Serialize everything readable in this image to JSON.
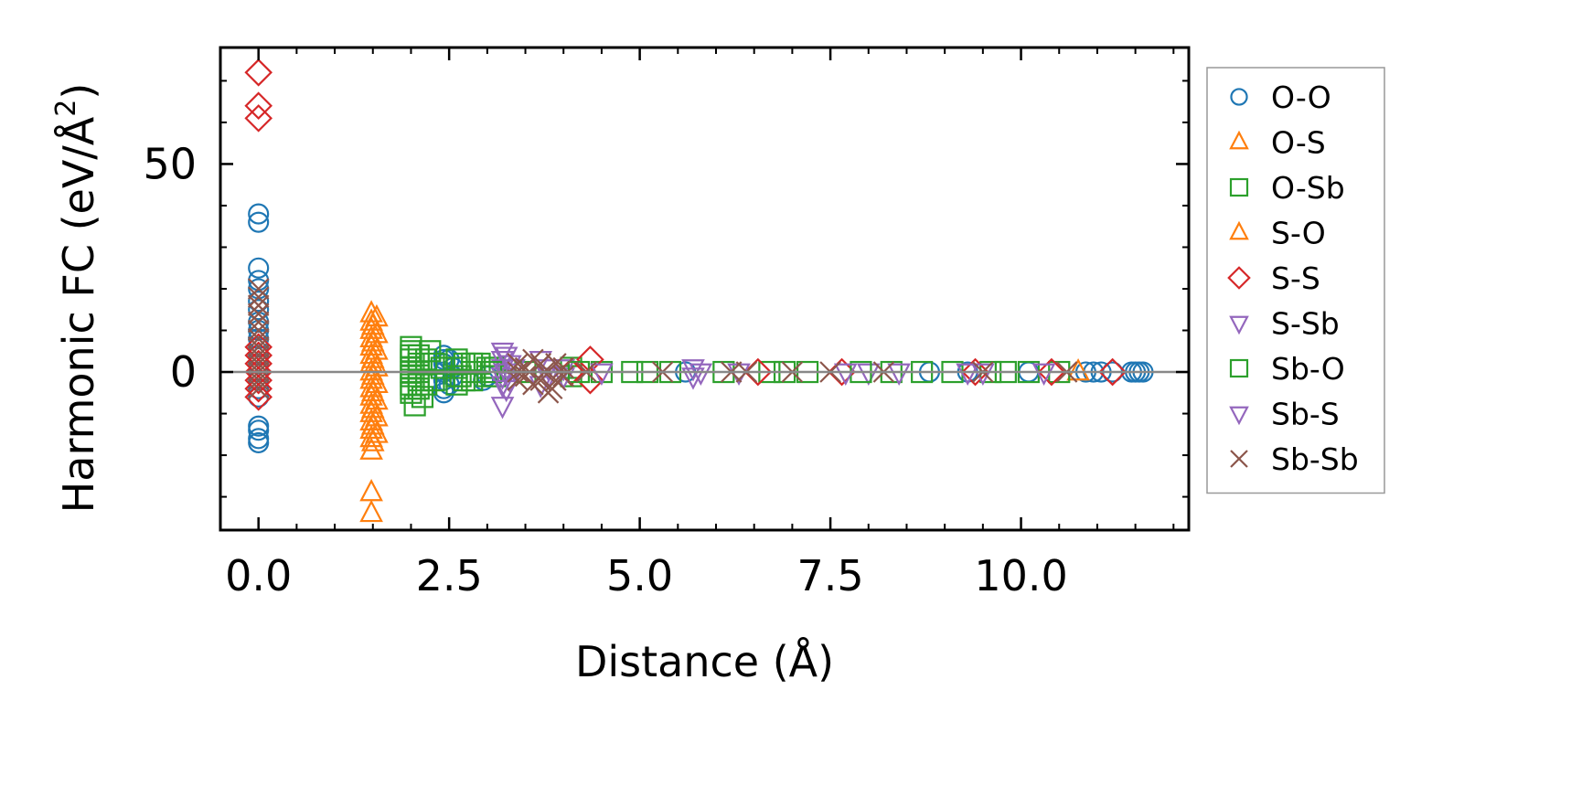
{
  "chart_data": {
    "type": "scatter",
    "xlabel": "Distance (Å)",
    "ylabel_main": "Harmonic FC (eV/Å",
    "ylabel_sup": "2",
    "ylabel_close": ")",
    "xlim": [
      -0.5,
      12.2
    ],
    "ylim": [
      -38,
      78
    ],
    "xticks": [
      0.0,
      2.5,
      5.0,
      7.5,
      10.0
    ],
    "xtick_labels": [
      "0.0",
      "2.5",
      "5.0",
      "7.5",
      "10.0"
    ],
    "yticks": [
      0,
      50
    ],
    "ytick_labels": [
      "0",
      "50"
    ],
    "zero_line": true,
    "grid": false,
    "legend_position": "outside-right",
    "series": [
      {
        "name": "O-O",
        "marker": "circle",
        "color": "#1f77b4",
        "points": [
          [
            0,
            38
          ],
          [
            0,
            36
          ],
          [
            0,
            25
          ],
          [
            0,
            22
          ],
          [
            0,
            20
          ],
          [
            0,
            17
          ],
          [
            0,
            15
          ],
          [
            0,
            12
          ],
          [
            0,
            10
          ],
          [
            0,
            8
          ],
          [
            0,
            6
          ],
          [
            0,
            4
          ],
          [
            0,
            2
          ],
          [
            0,
            0
          ],
          [
            0,
            -2
          ],
          [
            0,
            -4
          ],
          [
            0,
            -6
          ],
          [
            0,
            -13
          ],
          [
            0,
            -14
          ],
          [
            0,
            -16
          ],
          [
            0,
            -17
          ],
          [
            2.43,
            4
          ],
          [
            2.43,
            3
          ],
          [
            2.43,
            2
          ],
          [
            2.43,
            0
          ],
          [
            2.43,
            -2
          ],
          [
            2.43,
            -4
          ],
          [
            2.43,
            -5
          ],
          [
            2.5,
            3
          ],
          [
            2.5,
            -3
          ],
          [
            2.55,
            1
          ],
          [
            2.55,
            -1
          ],
          [
            2.95,
            -2
          ],
          [
            3.0,
            -1
          ],
          [
            5.6,
            0
          ],
          [
            8.8,
            0
          ],
          [
            9.3,
            0
          ],
          [
            10.1,
            0
          ],
          [
            10.85,
            0
          ],
          [
            10.95,
            0
          ],
          [
            11.05,
            0
          ],
          [
            11.2,
            0
          ],
          [
            11.45,
            0
          ],
          [
            11.5,
            0
          ],
          [
            11.55,
            0
          ],
          [
            11.6,
            0
          ]
        ]
      },
      {
        "name": "O-S",
        "marker": "triangle-up",
        "color": "#ff7f0e",
        "points": [
          [
            1.48,
            14
          ],
          [
            1.48,
            12
          ],
          [
            1.48,
            10
          ],
          [
            1.48,
            8
          ],
          [
            1.48,
            6
          ],
          [
            1.48,
            4
          ],
          [
            1.48,
            2
          ],
          [
            1.48,
            0
          ],
          [
            1.48,
            -2
          ],
          [
            1.48,
            -4
          ],
          [
            1.48,
            -6
          ],
          [
            1.48,
            -8
          ],
          [
            1.48,
            -10
          ],
          [
            1.48,
            -12
          ],
          [
            1.48,
            -14
          ],
          [
            1.48,
            -16
          ],
          [
            1.48,
            -19
          ],
          [
            1.48,
            -29
          ],
          [
            1.48,
            -34
          ],
          [
            1.55,
            13
          ],
          [
            1.55,
            9
          ],
          [
            1.55,
            5
          ],
          [
            1.55,
            1
          ],
          [
            1.55,
            -3
          ],
          [
            1.55,
            -7
          ],
          [
            1.55,
            -11
          ],
          [
            1.55,
            -15
          ],
          [
            10.75,
            0
          ]
        ]
      },
      {
        "name": "O-Sb",
        "marker": "square",
        "color": "#2ca02c",
        "points": [
          [
            2.0,
            6
          ],
          [
            2.0,
            5
          ],
          [
            2.0,
            3
          ],
          [
            2.0,
            1
          ],
          [
            2.0,
            -1
          ],
          [
            2.0,
            -3
          ],
          [
            2.0,
            -5
          ],
          [
            2.05,
            -8
          ],
          [
            2.1,
            4
          ],
          [
            2.1,
            2
          ],
          [
            2.1,
            0
          ],
          [
            2.1,
            -2
          ],
          [
            2.1,
            -4
          ],
          [
            2.2,
            3
          ],
          [
            2.2,
            -3
          ],
          [
            2.3,
            2
          ],
          [
            2.3,
            -2
          ],
          [
            2.6,
            3
          ],
          [
            2.6,
            1
          ],
          [
            2.6,
            -1
          ],
          [
            2.6,
            -3
          ],
          [
            2.7,
            2
          ],
          [
            2.7,
            -2
          ],
          [
            2.8,
            2
          ],
          [
            2.8,
            0
          ],
          [
            2.8,
            -2
          ],
          [
            3.0,
            1
          ],
          [
            3.0,
            -1
          ],
          [
            3.1,
            1
          ],
          [
            3.1,
            -1
          ],
          [
            3.5,
            0
          ],
          [
            4.1,
            1
          ],
          [
            4.1,
            -1
          ],
          [
            4.5,
            0
          ],
          [
            4.9,
            0
          ],
          [
            5.4,
            0
          ],
          [
            6.1,
            0
          ],
          [
            6.7,
            0
          ],
          [
            7.2,
            0
          ],
          [
            8.3,
            0
          ],
          [
            8.7,
            0
          ],
          [
            9.1,
            0
          ],
          [
            9.6,
            0
          ],
          [
            10.1,
            0
          ],
          [
            10.5,
            0
          ]
        ]
      },
      {
        "name": "S-O",
        "marker": "triangle-up",
        "color": "#ff7f0e",
        "points": [
          [
            1.5,
            11
          ],
          [
            1.5,
            7
          ],
          [
            1.5,
            3
          ],
          [
            1.5,
            -1
          ],
          [
            1.5,
            -5
          ],
          [
            1.5,
            -9
          ],
          [
            1.5,
            -13
          ],
          [
            1.5,
            -17
          ]
        ]
      },
      {
        "name": "S-S",
        "marker": "diamond",
        "color": "#d62728",
        "points": [
          [
            0,
            72
          ],
          [
            0,
            64
          ],
          [
            0,
            61
          ],
          [
            0,
            6
          ],
          [
            0,
            4
          ],
          [
            0,
            2
          ],
          [
            0,
            0
          ],
          [
            0,
            -2
          ],
          [
            0,
            -4
          ],
          [
            0,
            -6
          ],
          [
            4.35,
            3
          ],
          [
            4.35,
            -2
          ],
          [
            4.1,
            0
          ],
          [
            6.55,
            0
          ],
          [
            7.65,
            0
          ],
          [
            9.4,
            0
          ],
          [
            10.4,
            0
          ],
          [
            11.2,
            0
          ]
        ]
      },
      {
        "name": "S-Sb",
        "marker": "triangle-down",
        "color": "#9467bd",
        "points": [
          [
            3.2,
            5
          ],
          [
            3.2,
            3
          ],
          [
            3.2,
            1
          ],
          [
            3.2,
            -1
          ],
          [
            3.2,
            -3
          ],
          [
            3.2,
            -8
          ],
          [
            3.3,
            2
          ],
          [
            3.3,
            -2
          ],
          [
            3.7,
            3
          ],
          [
            3.7,
            -3
          ],
          [
            4.0,
            1
          ],
          [
            4.0,
            -1
          ],
          [
            4.5,
            0
          ],
          [
            5.7,
            1
          ],
          [
            5.7,
            -1
          ],
          [
            6.3,
            0
          ],
          [
            8.0,
            0
          ],
          [
            8.4,
            0
          ],
          [
            9.3,
            0
          ],
          [
            10.3,
            0
          ]
        ]
      },
      {
        "name": "Sb-O",
        "marker": "square",
        "color": "#2ca02c",
        "points": [
          [
            2.0,
            4
          ],
          [
            2.0,
            0
          ],
          [
            2.0,
            -4
          ],
          [
            2.15,
            -6
          ],
          [
            2.25,
            5
          ],
          [
            2.4,
            1
          ],
          [
            2.65,
            -1
          ],
          [
            2.9,
            2
          ],
          [
            3.05,
            0
          ],
          [
            4.2,
            0
          ],
          [
            5.1,
            0
          ],
          [
            6.9,
            0
          ],
          [
            7.9,
            0
          ],
          [
            9.8,
            0
          ]
        ]
      },
      {
        "name": "Sb-S",
        "marker": "triangle-down",
        "color": "#9467bd",
        "points": [
          [
            3.25,
            4
          ],
          [
            3.25,
            0
          ],
          [
            3.25,
            -4
          ],
          [
            3.35,
            1
          ],
          [
            3.8,
            1
          ],
          [
            3.8,
            -1
          ],
          [
            5.8,
            0
          ],
          [
            7.7,
            0
          ],
          [
            9.5,
            0
          ]
        ]
      },
      {
        "name": "Sb-Sb",
        "marker": "x",
        "color": "#8c564b",
        "points": [
          [
            0,
            20
          ],
          [
            0,
            18
          ],
          [
            0,
            16
          ],
          [
            0,
            14
          ],
          [
            0,
            12
          ],
          [
            0,
            10
          ],
          [
            0,
            8
          ],
          [
            0,
            6
          ],
          [
            0,
            4
          ],
          [
            0,
            2
          ],
          [
            0,
            0
          ],
          [
            0,
            -2
          ],
          [
            0,
            -4
          ],
          [
            3.4,
            2
          ],
          [
            3.4,
            0
          ],
          [
            3.4,
            -2
          ],
          [
            3.5,
            1
          ],
          [
            3.5,
            -1
          ],
          [
            3.6,
            3
          ],
          [
            3.6,
            -3
          ],
          [
            3.7,
            2
          ],
          [
            3.7,
            -2
          ],
          [
            3.75,
            0
          ],
          [
            3.8,
            -5
          ],
          [
            3.85,
            -4
          ],
          [
            3.9,
            2
          ],
          [
            3.9,
            -2
          ],
          [
            4.0,
            1
          ],
          [
            4.0,
            -1
          ],
          [
            4.3,
            0
          ],
          [
            5.3,
            0
          ],
          [
            6.2,
            0
          ],
          [
            6.4,
            0
          ],
          [
            7.0,
            0
          ],
          [
            7.5,
            0
          ],
          [
            8.2,
            0
          ],
          [
            9.5,
            0
          ],
          [
            10.6,
            0
          ]
        ]
      }
    ]
  }
}
